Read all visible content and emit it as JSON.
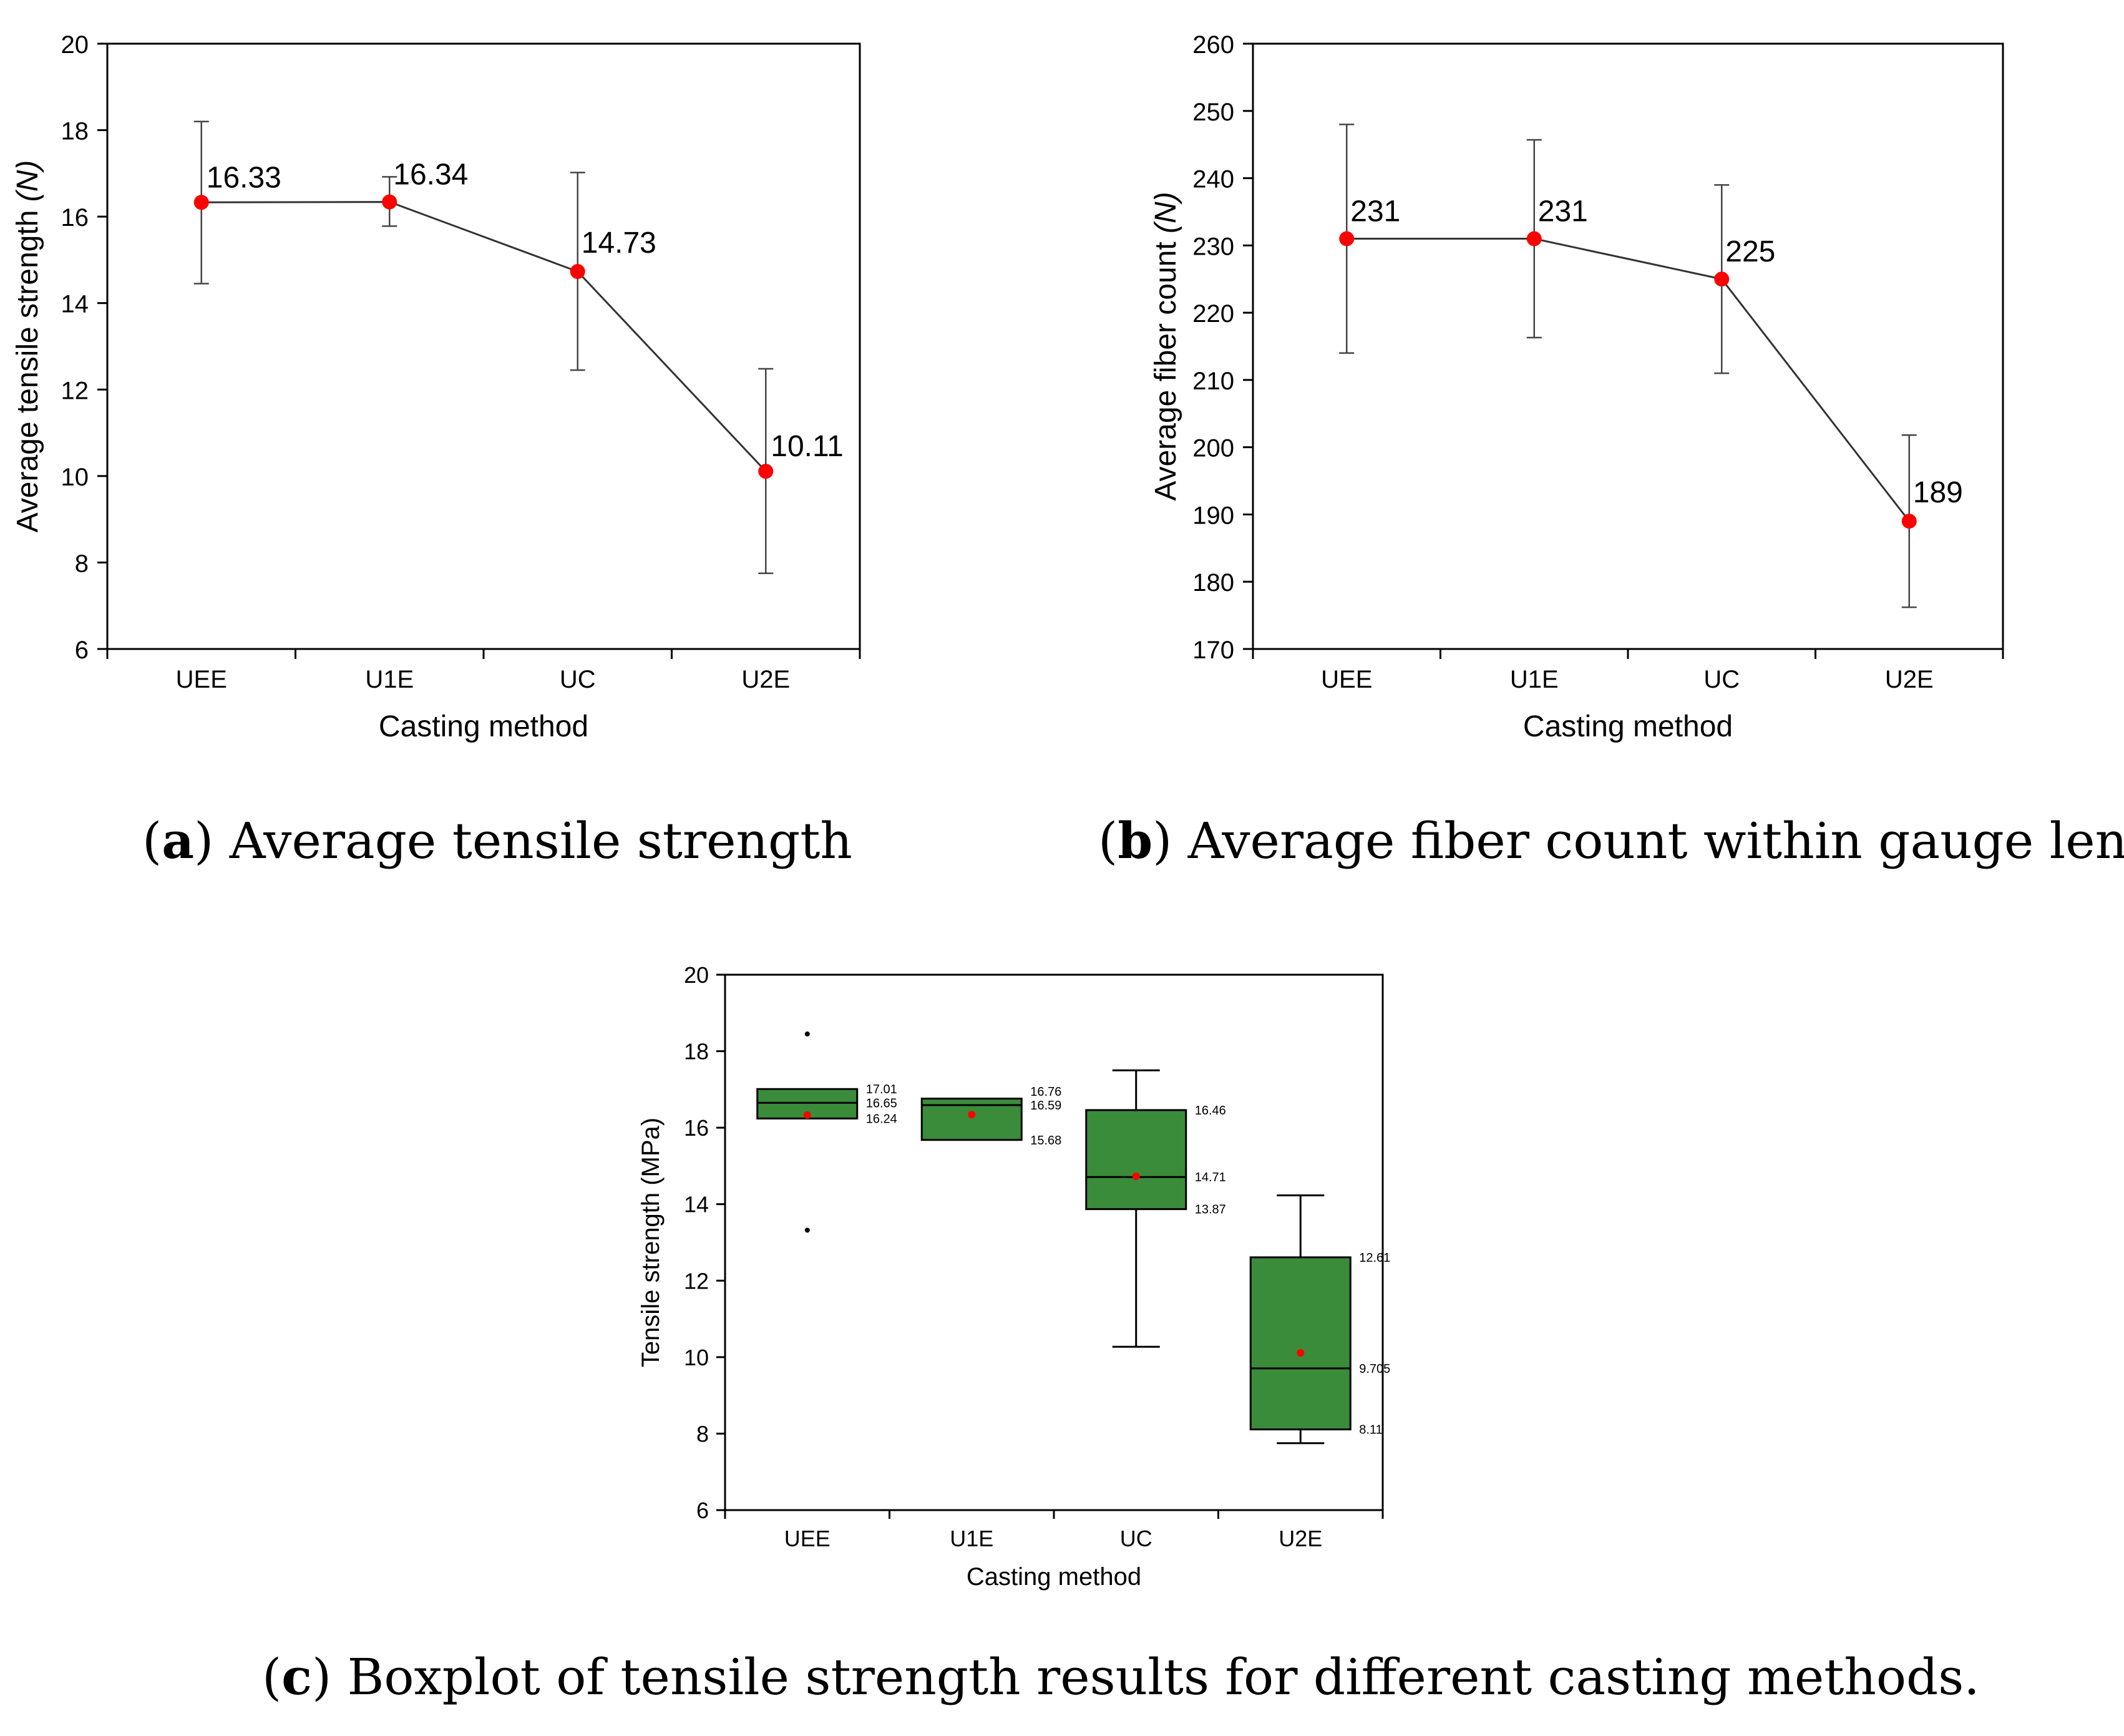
{
  "chart_data": [
    {
      "id": "a",
      "type": "line",
      "categories": [
        "UEE",
        "U1E",
        "UC",
        "U2E"
      ],
      "values": [
        16.33,
        16.34,
        14.73,
        10.11
      ],
      "data_labels": [
        "16.33",
        "16.34",
        "14.73",
        "10.11"
      ],
      "error_low": [
        14.45,
        15.78,
        12.45,
        7.75
      ],
      "error_high": [
        18.2,
        16.92,
        17.02,
        12.48
      ],
      "xlabel": "Casting method",
      "ylabel": "Average tensile strength (N)",
      "ylim": [
        6,
        20
      ],
      "yticks": [
        6,
        8,
        10,
        12,
        14,
        16,
        18,
        20
      ],
      "marker_color": "#ff0000",
      "line_color": "#333333",
      "caption_letter": "a",
      "caption_text": " Average tensile strength"
    },
    {
      "id": "b",
      "type": "line",
      "categories": [
        "UEE",
        "U1E",
        "UC",
        "U2E"
      ],
      "values": [
        231,
        231,
        225,
        189
      ],
      "data_labels": [
        "231",
        "231",
        "225",
        "189"
      ],
      "error_low": [
        214,
        216.3,
        211,
        176.2
      ],
      "error_high": [
        248,
        245.7,
        239,
        201.8
      ],
      "xlabel": "Casting method",
      "ylabel": "Average fiber count (N)",
      "ylim": [
        170,
        260
      ],
      "yticks": [
        170,
        180,
        190,
        200,
        210,
        220,
        230,
        240,
        250,
        260
      ],
      "marker_color": "#ff0000",
      "line_color": "#333333",
      "caption_letter": "b",
      "caption_text": " Average fiber count within gauge length"
    },
    {
      "id": "c",
      "type": "box",
      "categories": [
        "UEE",
        "U1E",
        "UC",
        "U2E"
      ],
      "boxes": [
        {
          "q1": 16.24,
          "median": 16.65,
          "q3": 17.01,
          "mean": 16.33,
          "whisker_low": null,
          "whisker_high": null,
          "outliers": [
            18.45,
            13.32
          ],
          "labels": [
            "17.01",
            "16.65",
            "16.24"
          ]
        },
        {
          "q1": 15.68,
          "median": 16.59,
          "q3": 16.76,
          "mean": 16.34,
          "whisker_low": null,
          "whisker_high": null,
          "outliers": [],
          "labels": [
            "16.76",
            "16.59",
            "15.68"
          ]
        },
        {
          "q1": 13.87,
          "median": 14.71,
          "q3": 16.46,
          "mean": 14.73,
          "whisker_low": 10.27,
          "whisker_high": 17.5,
          "outliers": [],
          "labels": [
            "16.46",
            "14.71",
            "13.87"
          ]
        },
        {
          "q1": 8.11,
          "median": 9.705,
          "q3": 12.61,
          "mean": 10.11,
          "whisker_low": 7.75,
          "whisker_high": 14.23,
          "outliers": [],
          "labels": [
            "12.61",
            "9.705",
            "8.11"
          ]
        }
      ],
      "xlabel": "Casting method",
      "ylabel": "Tensile strength (MPa)",
      "ylim": [
        6,
        20
      ],
      "yticks": [
        6,
        8,
        10,
        12,
        14,
        16,
        18,
        20
      ],
      "box_color": "#3a8c3a",
      "mean_color": "#ff0000",
      "caption_letter": "c",
      "caption_text": " Boxplot of tensile strength results for different casting methods."
    }
  ]
}
